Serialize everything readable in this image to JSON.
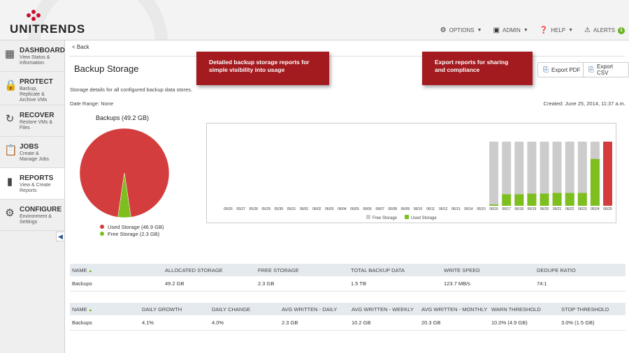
{
  "brand": {
    "name": "UNITRENDS",
    "accent": "#c8102e"
  },
  "topnav": [
    {
      "icon": "options-icon",
      "label": "OPTIONS"
    },
    {
      "icon": "admin-icon",
      "label": "ADMIN"
    },
    {
      "icon": "help-icon",
      "label": "HELP"
    },
    {
      "icon": "alert-icon",
      "label": "ALERTS",
      "count": "1"
    }
  ],
  "sidebar": {
    "items": [
      {
        "title": "DASHBOARD",
        "sub": [
          "View Status &",
          "Information"
        ]
      },
      {
        "title": "PROTECT",
        "sub": [
          "Backup,",
          "Replicate &",
          "Archive VMs"
        ]
      },
      {
        "title": "RECOVER",
        "sub": [
          "Restore VMs &",
          "Files"
        ]
      },
      {
        "title": "JOBS",
        "sub": [
          "Create &",
          "Manage Jobs"
        ]
      },
      {
        "title": "REPORTS",
        "sub": [
          "View & Create",
          "Reports"
        ]
      },
      {
        "title": "CONFIGURE",
        "sub": [
          "Environment &",
          "Settings"
        ]
      }
    ]
  },
  "main": {
    "back": "< Back",
    "title": "Backup Storage",
    "callout1": "Detailed backup storage reports for simple visibility into usage",
    "callout2": "Export reports for sharing and compliance",
    "export_pdf": "Export PDF",
    "export_csv": "Export CSV",
    "description": "Storage details for all configured backup data stores.",
    "date_range": "Date Range: None",
    "created": "Created: June 25, 2014, 11:37 a.m."
  },
  "pie": {
    "title": "Backups (49.2 GB)",
    "slices": [
      {
        "label": "Used Storage (46.9 GB)",
        "value": 46.9,
        "color": "#d43d3d"
      },
      {
        "label": "Free Storage (2.3 GB)",
        "value": 2.3,
        "color": "#7cbf1f"
      }
    ]
  },
  "chart_data": {
    "type": "bar",
    "categories": [
      "05/26",
      "05/27",
      "05/28",
      "05/29",
      "05/30",
      "05/31",
      "06/01",
      "06/02",
      "06/03",
      "06/04",
      "06/05",
      "06/06",
      "06/07",
      "06/08",
      "06/09",
      "06/10",
      "06/11",
      "06/12",
      "06/13",
      "06/14",
      "06/15",
      "06/16",
      "06/17",
      "06/18",
      "06/19",
      "06/20",
      "06/21",
      "06/22",
      "06/23",
      "06/24",
      "06/25"
    ],
    "series": [
      {
        "name": "Free Storage",
        "color": "#cccccc",
        "values": [
          0,
          0,
          0,
          0,
          0,
          0,
          0,
          0,
          0,
          0,
          0,
          0,
          0,
          0,
          0,
          0,
          0,
          0,
          0,
          0,
          0,
          1,
          1,
          1,
          1,
          1,
          1,
          1,
          1,
          1,
          0
        ]
      },
      {
        "name": "Used Storage",
        "color": "#7cbf1f",
        "values": [
          0,
          0,
          0,
          0,
          0,
          0,
          0,
          0,
          0,
          0,
          0,
          0,
          0,
          0,
          0,
          0,
          0,
          0,
          0,
          0,
          0,
          0.02,
          0.18,
          0.18,
          0.19,
          0.19,
          0.2,
          0.2,
          0.2,
          0.73,
          0
        ]
      },
      {
        "name": "",
        "color": "#d43d3d",
        "values": [
          0,
          0,
          0,
          0,
          0,
          0,
          0,
          0,
          0,
          0,
          0,
          0,
          0,
          0,
          0,
          0,
          0,
          0,
          0,
          0,
          0,
          0,
          0,
          0,
          0,
          0,
          0,
          0,
          0,
          0,
          1
        ]
      }
    ],
    "legend": [
      "Free Storage",
      "Used Storage"
    ],
    "legend_position": "bottom",
    "ylim": [
      0,
      1
    ],
    "grid": false
  },
  "table1": {
    "headers": [
      "NAME",
      "ALLOCATED STORAGE",
      "FREE STORAGE",
      "TOTAL BACKUP DATA",
      "WRITE SPEED",
      "DEDUPE RATIO"
    ],
    "rows": [
      [
        "Backups",
        "49.2 GB",
        "2.3 GB",
        "1.5 TB",
        "123.7 MB/s",
        "74:1"
      ]
    ]
  },
  "table2": {
    "headers": [
      "NAME",
      "DAILY GROWTH",
      "DAILY CHANGE",
      "AVG WRITTEN - DAILY",
      "AVG WRITTEN - WEEKLY",
      "AVG WRITTEN - MONTHLY",
      "WARN THRESHOLD",
      "STOP THRESHOLD"
    ],
    "rows": [
      [
        "Backups",
        "4.1%",
        "4.0%",
        "2.3 GB",
        "10.2 GB",
        "20.3 GB",
        "10.0% (4.9 GB)",
        "3.0% (1.5 GB)"
      ]
    ]
  }
}
